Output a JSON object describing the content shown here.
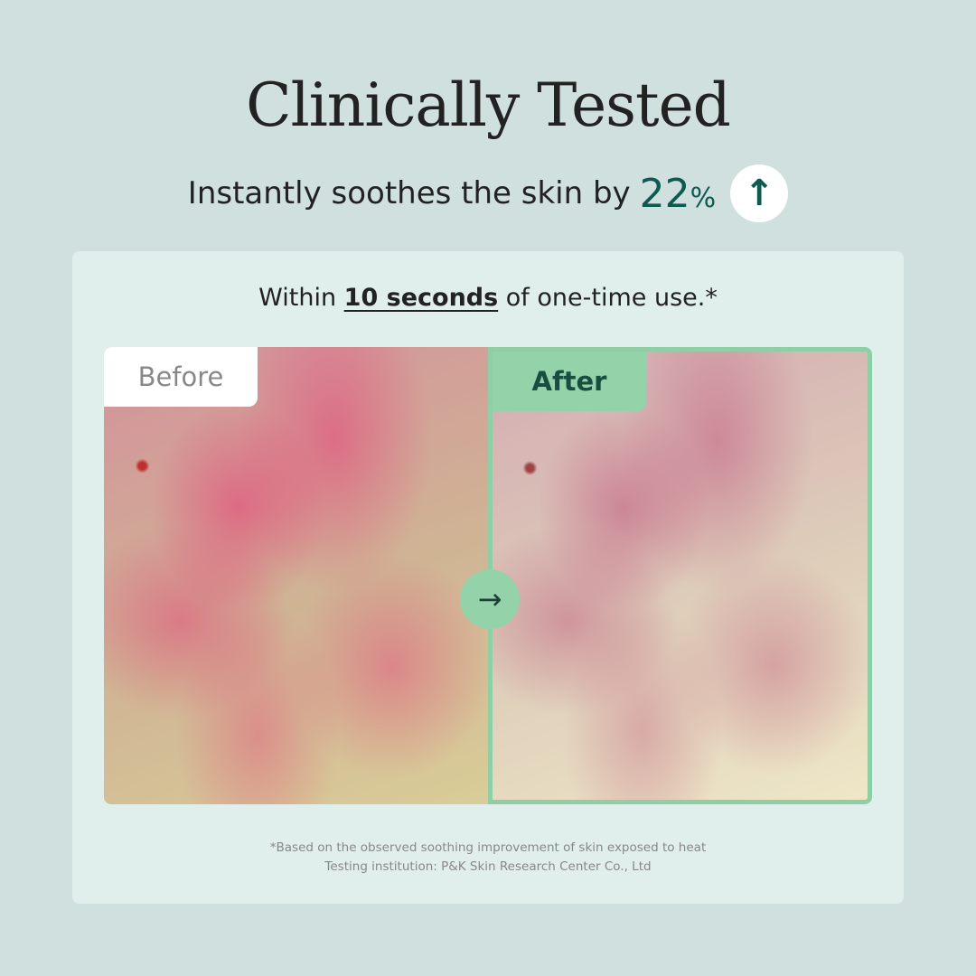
{
  "header": {
    "title": "Clinically Tested",
    "subtitle": "Instantly soothes the skin by",
    "percent": "22",
    "percent_sign": "%",
    "up_icon": "arrow-up-icon",
    "accent": "#0f5a4f"
  },
  "panel": {
    "intro_prefix": "Within",
    "intro_bold": "10 seconds",
    "intro_suffix": "of one-time use.*",
    "before_label": "Before",
    "after_label": "After",
    "arrow_icon": "arrow-right-icon",
    "footnote_1": "*Based on the observed soothing improvement of skin exposed to heat",
    "footnote_2": "Testing institution: P&K Skin Research Center Co., Ltd"
  }
}
